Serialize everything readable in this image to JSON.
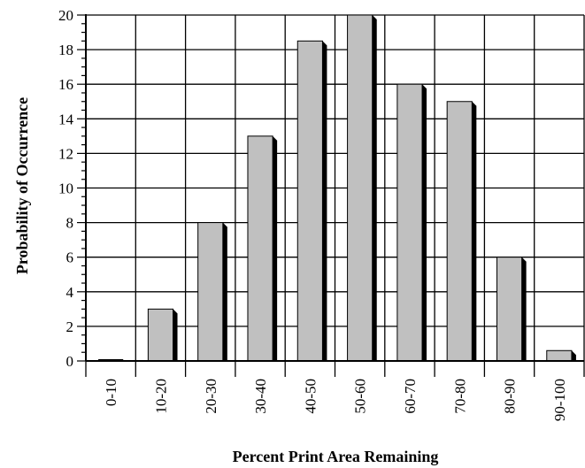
{
  "chart_data": {
    "type": "bar",
    "xlabel": "Percent Print Area Remaining",
    "ylabel": "Probability of Occurrence",
    "categories": [
      "0-10",
      "10-20",
      "20-30",
      "30-40",
      "40-50",
      "50-60",
      "60-70",
      "70-80",
      "80-90",
      "90-100"
    ],
    "values": [
      0,
      3,
      8,
      13,
      18.5,
      20,
      16,
      15,
      6,
      0.6
    ],
    "ylim": [
      0,
      20
    ],
    "yticks": [
      "0",
      "2",
      "4",
      "6",
      "8",
      "10",
      "12",
      "14",
      "16",
      "18",
      "20"
    ],
    "grid": true,
    "bar_color": "#c0c0c0",
    "bar_shadow_color": "#000000"
  }
}
